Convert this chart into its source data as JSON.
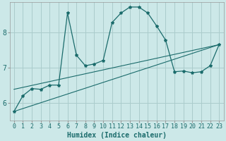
{
  "xlabel": "Humidex (Indice chaleur)",
  "bg_color": "#cce8e8",
  "grid_color": "#aacccc",
  "line_color": "#1a6b6b",
  "xlim": [
    -0.5,
    23.5
  ],
  "ylim": [
    5.5,
    8.85
  ],
  "x_ticks": [
    0,
    1,
    2,
    3,
    4,
    5,
    6,
    7,
    8,
    9,
    10,
    11,
    12,
    13,
    14,
    15,
    16,
    17,
    18,
    19,
    20,
    21,
    22,
    23
  ],
  "y_ticks": [
    6,
    7,
    8
  ],
  "main_x": [
    0,
    1,
    2,
    3,
    4,
    5,
    6,
    7,
    8,
    9,
    10,
    11,
    12,
    13,
    14,
    15,
    16,
    17,
    18,
    19,
    20,
    21,
    22,
    23
  ],
  "main_y": [
    5.75,
    6.2,
    6.4,
    6.38,
    6.5,
    6.5,
    8.55,
    7.35,
    7.05,
    7.1,
    7.2,
    8.28,
    8.55,
    8.72,
    8.72,
    8.55,
    8.18,
    7.78,
    6.88,
    6.9,
    6.85,
    6.88,
    7.05,
    7.65
  ],
  "line2_x": [
    0,
    23
  ],
  "line2_y": [
    5.75,
    7.65
  ],
  "line3_x": [
    0,
    23
  ],
  "line3_y": [
    6.38,
    7.65
  ],
  "tick_fontsize": 6,
  "xlabel_fontsize": 7
}
